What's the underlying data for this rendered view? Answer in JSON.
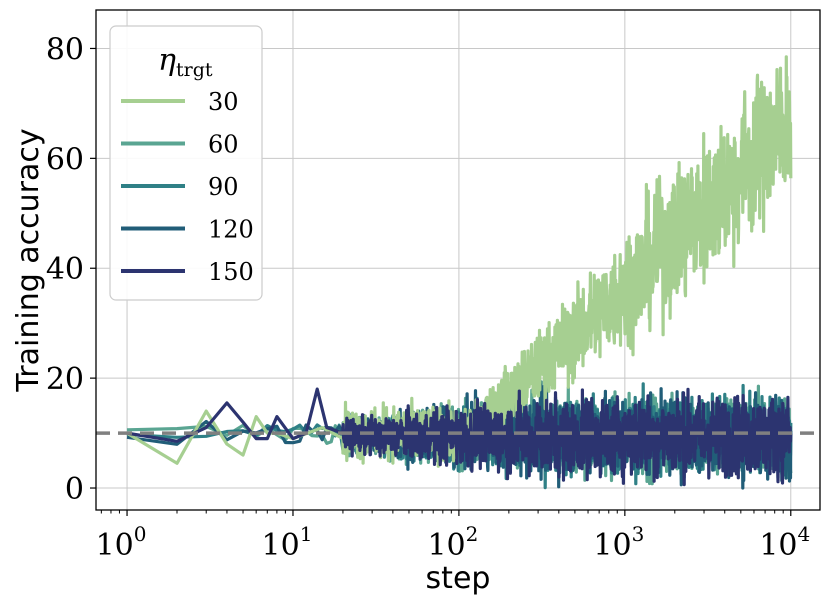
{
  "chart_data": {
    "type": "line",
    "xlabel": "step",
    "ylabel": "Training accuracy",
    "x_scale": "log",
    "xlim": [
      0.65,
      15000
    ],
    "ylim": [
      -4,
      87
    ],
    "x_ticks": [
      {
        "base": "10",
        "exp": "0",
        "value": 1
      },
      {
        "base": "10",
        "exp": "1",
        "value": 10
      },
      {
        "base": "10",
        "exp": "2",
        "value": 100
      },
      {
        "base": "10",
        "exp": "3",
        "value": 1000
      },
      {
        "base": "10",
        "exp": "4",
        "value": 10000
      }
    ],
    "y_ticks": [
      "0",
      "20",
      "40",
      "60",
      "80"
    ],
    "grid": true,
    "legend": {
      "title_symbol": "η",
      "title_subscript": "trgt",
      "placement": "top-left",
      "entries": [
        "30",
        "60",
        "90",
        "120",
        "150"
      ]
    },
    "reference_line": {
      "y": 10,
      "style": "dashed",
      "color": "#808080"
    },
    "series": [
      {
        "name": "30",
        "color": "#a6cf91",
        "start_value": 10,
        "end_mean": 67,
        "end_spread": 14,
        "peak_max": 83
      },
      {
        "name": "60",
        "color": "#5aa592",
        "start_value": 10,
        "end_mean": 9,
        "end_spread": 8,
        "peak_max": 24
      },
      {
        "name": "90",
        "color": "#2f8086",
        "start_value": 10,
        "end_mean": 9,
        "end_spread": 8,
        "peak_max": 22
      },
      {
        "name": "120",
        "color": "#215d78",
        "start_value": 10,
        "end_mean": 9,
        "end_spread": 8,
        "peak_max": 22
      },
      {
        "name": "150",
        "color": "#2c3470",
        "start_value": 10,
        "end_mean": 9,
        "end_spread": 8,
        "peak_max": 23
      }
    ],
    "sampled_points": {
      "30": [
        [
          1,
          10
        ],
        [
          2,
          4.5
        ],
        [
          3,
          14
        ],
        [
          4,
          8
        ],
        [
          5,
          6
        ],
        [
          6,
          13
        ],
        [
          7,
          10
        ],
        [
          8,
          10
        ],
        [
          10,
          9
        ],
        [
          15,
          11
        ],
        [
          20,
          9
        ],
        [
          30,
          10
        ],
        [
          50,
          11
        ],
        [
          100,
          13
        ],
        [
          200,
          22
        ],
        [
          300,
          28
        ],
        [
          500,
          35
        ],
        [
          1000,
          45
        ],
        [
          2000,
          55
        ],
        [
          5000,
          65
        ],
        [
          10000,
          67
        ]
      ],
      "150": [
        [
          1,
          10
        ],
        [
          2,
          8.5
        ],
        [
          3,
          11
        ],
        [
          4,
          15.5
        ],
        [
          5,
          12
        ],
        [
          6,
          9
        ],
        [
          7,
          9
        ],
        [
          8,
          13
        ],
        [
          10,
          9
        ],
        [
          12,
          10
        ],
        [
          14,
          18
        ],
        [
          16,
          11
        ],
        [
          20,
          10
        ],
        [
          30,
          10
        ],
        [
          100,
          10
        ],
        [
          1000,
          9
        ],
        [
          10000,
          9
        ]
      ]
    }
  }
}
